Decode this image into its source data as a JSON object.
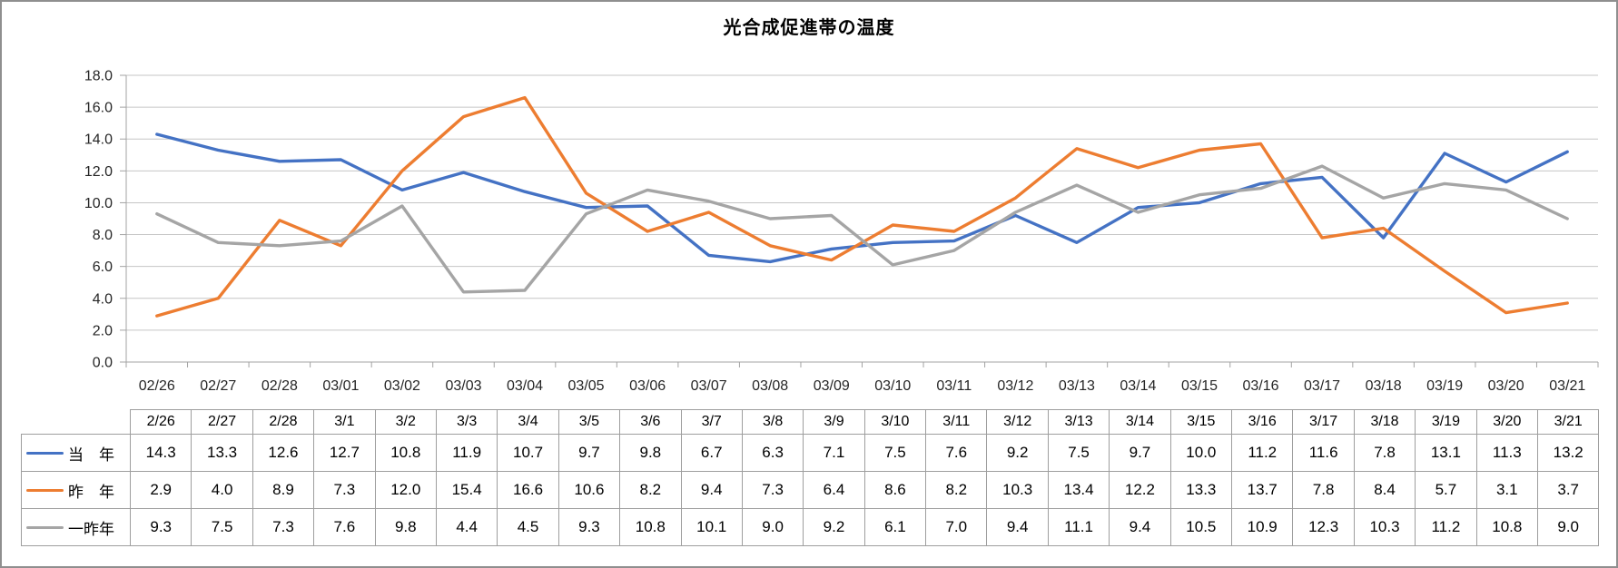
{
  "chart_data": {
    "type": "line",
    "title": "光合成促進帯の温度",
    "xlabel": "",
    "ylabel": "",
    "ylim": [
      0,
      18
    ],
    "y_tick_step": 2,
    "y_tick_labels": [
      "0.0",
      "2.0",
      "4.0",
      "6.0",
      "8.0",
      "10.0",
      "12.0",
      "14.0",
      "16.0",
      "18.0"
    ],
    "grid": true,
    "legend_position": "table-left",
    "x_labels": [
      "02/26",
      "02/27",
      "02/28",
      "03/01",
      "03/02",
      "03/03",
      "03/04",
      "03/05",
      "03/06",
      "03/07",
      "03/08",
      "03/09",
      "03/10",
      "03/11",
      "03/12",
      "03/13",
      "03/14",
      "03/15",
      "03/16",
      "03/17",
      "03/18",
      "03/19",
      "03/20",
      "03/21"
    ],
    "series": [
      {
        "key": "this-year",
        "name": "当　年",
        "color": "#4472C4",
        "values": [
          14.3,
          13.3,
          12.6,
          12.7,
          10.8,
          11.9,
          10.7,
          9.7,
          9.8,
          6.7,
          6.3,
          7.1,
          7.5,
          7.6,
          9.2,
          7.5,
          9.7,
          10.0,
          11.2,
          11.6,
          7.8,
          13.1,
          11.3,
          13.2
        ]
      },
      {
        "key": "last-year",
        "name": "昨　年",
        "color": "#ED7D31",
        "values": [
          2.9,
          4.0,
          8.9,
          7.3,
          12.0,
          15.4,
          16.6,
          10.6,
          8.2,
          9.4,
          7.3,
          6.4,
          8.6,
          8.2,
          10.3,
          13.4,
          12.2,
          13.3,
          13.7,
          7.8,
          8.4,
          5.7,
          3.1,
          3.7
        ]
      },
      {
        "key": "year-before-last",
        "name": "一昨年",
        "color": "#A5A5A5",
        "values": [
          9.3,
          7.5,
          7.3,
          7.6,
          9.8,
          4.4,
          4.5,
          9.3,
          10.8,
          10.1,
          9.0,
          9.2,
          6.1,
          7.0,
          9.4,
          11.1,
          9.4,
          10.5,
          10.9,
          12.3,
          10.3,
          11.2,
          10.8,
          9.0
        ]
      }
    ]
  },
  "table": {
    "columns": [
      "2/26",
      "2/27",
      "2/28",
      "3/1",
      "3/2",
      "3/3",
      "3/4",
      "3/5",
      "3/6",
      "3/7",
      "3/8",
      "3/9",
      "3/10",
      "3/11",
      "3/12",
      "3/13",
      "3/14",
      "3/15",
      "3/16",
      "3/17",
      "3/18",
      "3/19",
      "3/20",
      "3/21"
    ],
    "rows": [
      {
        "key": "this-year",
        "label": "当　年",
        "color": "#4472C4",
        "values": [
          "14.3",
          "13.3",
          "12.6",
          "12.7",
          "10.8",
          "11.9",
          "10.7",
          "9.7",
          "9.8",
          "6.7",
          "6.3",
          "7.1",
          "7.5",
          "7.6",
          "9.2",
          "7.5",
          "9.7",
          "10.0",
          "11.2",
          "11.6",
          "7.8",
          "13.1",
          "11.3",
          "13.2"
        ]
      },
      {
        "key": "last-year",
        "label": "昨　年",
        "color": "#ED7D31",
        "values": [
          "2.9",
          "4.0",
          "8.9",
          "7.3",
          "12.0",
          "15.4",
          "16.6",
          "10.6",
          "8.2",
          "9.4",
          "7.3",
          "6.4",
          "8.6",
          "8.2",
          "10.3",
          "13.4",
          "12.2",
          "13.3",
          "13.7",
          "7.8",
          "8.4",
          "5.7",
          "3.1",
          "3.7"
        ]
      },
      {
        "key": "year-before-last",
        "label": "一昨年",
        "color": "#A5A5A5",
        "values": [
          "9.3",
          "7.5",
          "7.3",
          "7.6",
          "9.8",
          "4.4",
          "4.5",
          "9.3",
          "10.8",
          "10.1",
          "9.0",
          "9.2",
          "6.1",
          "7.0",
          "9.4",
          "11.1",
          "9.4",
          "10.5",
          "10.9",
          "12.3",
          "10.3",
          "11.2",
          "10.8",
          "9.0"
        ]
      }
    ]
  },
  "colors": {
    "series_blue": "#4472C4",
    "series_orange": "#ED7D31",
    "series_gray": "#A5A5A5",
    "gridline": "#c6c6c6",
    "axis_line": "#a3a3a3",
    "axis_text": "#262626",
    "table_border": "#9e9e9e",
    "canvas_border": "#8f8f8f",
    "background": "#ffffff"
  }
}
